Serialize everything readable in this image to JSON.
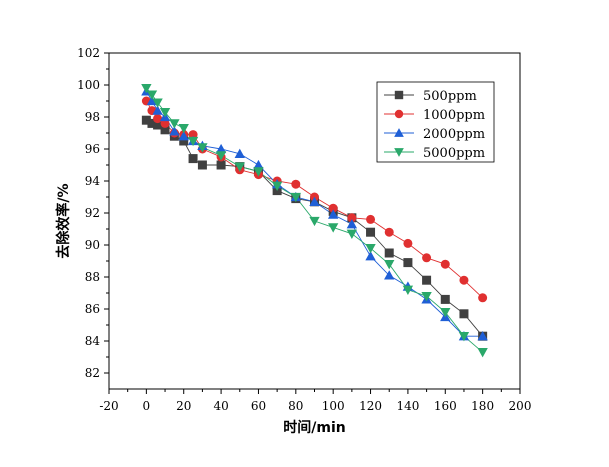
{
  "chart_data": {
    "type": "line",
    "title": "",
    "xlabel": "时间/min",
    "ylabel": "去除效率/%",
    "xlim": [
      -20,
      200
    ],
    "ylim": [
      81,
      102
    ],
    "xticks": [
      -20,
      0,
      20,
      40,
      60,
      80,
      100,
      120,
      140,
      160,
      180,
      200
    ],
    "yticks": [
      82,
      84,
      86,
      88,
      90,
      92,
      94,
      96,
      98,
      100,
      102
    ],
    "grid": false,
    "legend_position": "top-right",
    "series": [
      {
        "name": "500ppm",
        "color": "#404040",
        "marker": "square",
        "x": [
          0,
          3,
          6,
          10,
          15,
          20,
          25,
          30,
          40,
          50,
          60,
          70,
          80,
          90,
          100,
          110,
          120,
          130,
          140,
          150,
          160,
          170,
          180
        ],
        "y": [
          97.8,
          97.6,
          97.5,
          97.2,
          96.8,
          96.5,
          95.4,
          95.0,
          95.0,
          94.9,
          94.6,
          93.4,
          92.9,
          92.7,
          92.1,
          91.7,
          90.8,
          89.5,
          88.9,
          87.8,
          86.6,
          85.7,
          84.3
        ]
      },
      {
        "name": "1000ppm",
        "color": "#e03030",
        "marker": "circle",
        "x": [
          0,
          3,
          6,
          10,
          15,
          20,
          25,
          30,
          40,
          50,
          60,
          70,
          80,
          90,
          100,
          110,
          120,
          130,
          140,
          150,
          160,
          170,
          180
        ],
        "y": [
          99.0,
          98.4,
          97.9,
          97.6,
          97.0,
          96.9,
          96.9,
          96.0,
          95.5,
          94.7,
          94.4,
          94.0,
          93.8,
          93.0,
          92.3,
          91.7,
          91.6,
          90.8,
          90.1,
          89.2,
          88.8,
          87.8,
          86.7
        ]
      },
      {
        "name": "2000ppm",
        "color": "#1f5fd6",
        "marker": "triangle-up",
        "x": [
          0,
          3,
          6,
          10,
          15,
          20,
          25,
          30,
          40,
          50,
          60,
          70,
          80,
          90,
          100,
          110,
          120,
          130,
          140,
          150,
          160,
          170,
          180
        ],
        "y": [
          99.6,
          99.0,
          98.4,
          98.0,
          97.1,
          96.8,
          96.5,
          96.2,
          96.0,
          95.7,
          95.0,
          93.8,
          93.0,
          92.7,
          91.9,
          91.3,
          89.3,
          88.1,
          87.4,
          86.6,
          85.5,
          84.3,
          84.3
        ]
      },
      {
        "name": "5000ppm",
        "color": "#2aa86a",
        "marker": "triangle-down",
        "x": [
          0,
          3,
          6,
          10,
          15,
          20,
          25,
          30,
          40,
          50,
          60,
          70,
          80,
          90,
          100,
          110,
          120,
          130,
          140,
          150,
          160,
          170,
          180
        ],
        "y": [
          99.8,
          99.4,
          98.9,
          98.3,
          97.6,
          97.3,
          96.5,
          96.1,
          95.6,
          94.9,
          94.6,
          93.7,
          93.0,
          91.5,
          91.1,
          90.7,
          89.8,
          88.8,
          87.2,
          86.8,
          85.8,
          84.3,
          83.3
        ]
      }
    ]
  }
}
